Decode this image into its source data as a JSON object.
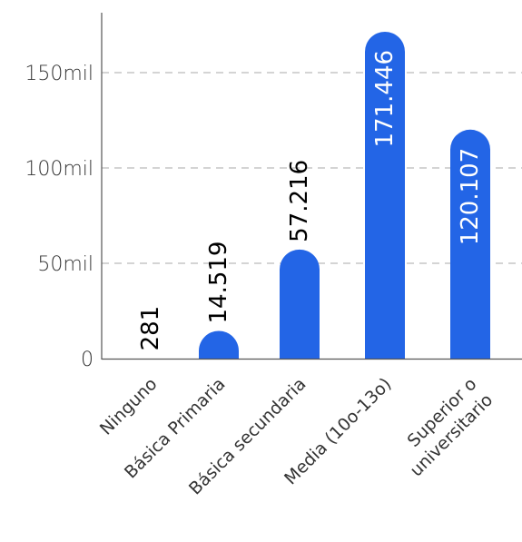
{
  "chart_data": {
    "type": "bar",
    "title": "",
    "xlabel": "",
    "ylabel": "",
    "ylim": [
      0,
      175000
    ],
    "grid": true,
    "categories": [
      [
        "Ninguno"
      ],
      [
        "Básica Primaria"
      ],
      [
        "Básica secundaria"
      ],
      [
        "Media (10o-13o)"
      ],
      [
        "Superior o",
        "universitario"
      ]
    ],
    "values": [
      281,
      14519,
      57216,
      171446,
      120107
    ],
    "value_labels": [
      "281",
      "14.519",
      "57.216",
      "171.446",
      "120.107"
    ],
    "y_ticks": [
      {
        "value": 0,
        "label": "0"
      },
      {
        "value": 50000,
        "label": "50mil"
      },
      {
        "value": 100000,
        "label": "100mil"
      },
      {
        "value": 150000,
        "label": "150mil"
      }
    ],
    "colors": {
      "bar": "#2365e6",
      "label_inside": "#ffffff",
      "label_outside": "#000000",
      "grid": "#aaaaaa",
      "axis": "#555555",
      "text": "#333333"
    }
  }
}
